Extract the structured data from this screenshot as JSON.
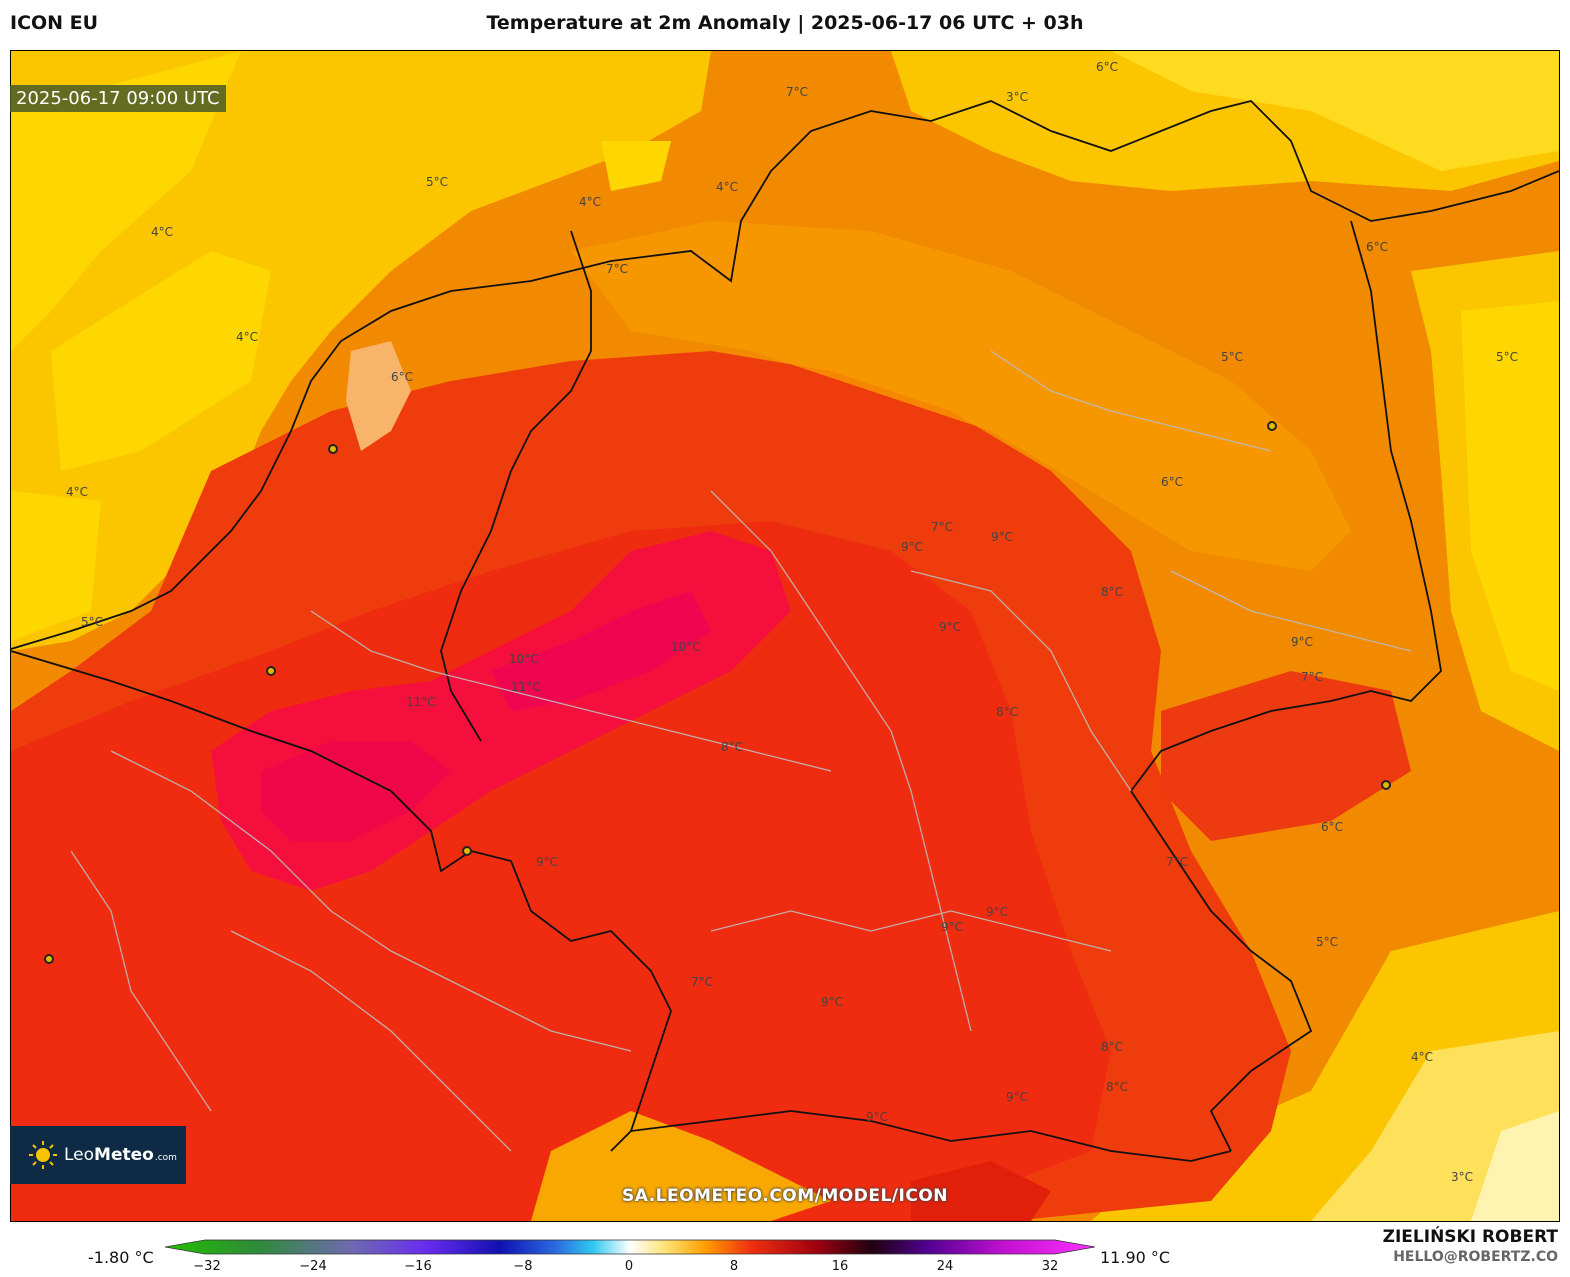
{
  "header": {
    "model": "ICON EU",
    "title": "Temperature at 2m Anomaly | 2025-06-17 06 UTC + 03h"
  },
  "map": {
    "valid_time": "2025-06-17 09:00 UTC",
    "contour_labels": [
      "5°C",
      "4°C",
      "4°C",
      "4°C",
      "4°C",
      "4°C",
      "5°C",
      "6°C",
      "7°C",
      "7°C",
      "6°C",
      "3°C",
      "6°C",
      "5°C",
      "5°C",
      "6°C",
      "7°C",
      "9°C",
      "9°C",
      "10°C",
      "10°C",
      "11°C",
      "11°C",
      "9°C",
      "9°C",
      "8°C",
      "8°C",
      "9°C",
      "7°C",
      "9°C",
      "8°C",
      "8°C",
      "9°C",
      "9°C",
      "7°C",
      "6°C",
      "5°C",
      "4°C",
      "3°C",
      "7°C",
      "9°C",
      "9°C",
      "8°C"
    ],
    "cities": [
      "city-1",
      "city-2",
      "city-3",
      "city-4",
      "city-5",
      "city-6"
    ],
    "url": "SA.LEOMETEO.COM/MODEL/ICON"
  },
  "logo": {
    "brand": "Leo",
    "brand_bold": "Meteo",
    "suffix": ".com"
  },
  "colorbar": {
    "min_label": "-1.80 °C",
    "max_label": "11.90 °C",
    "ticks": [
      "−32",
      "−24",
      "−16",
      "−8",
      "0",
      "8",
      "16",
      "24",
      "32"
    ],
    "range": [
      -36,
      36
    ]
  },
  "credits": {
    "author": "ZIELIŃSKI ROBERT",
    "email": "HELLO@ROBERTZ.CO"
  }
}
